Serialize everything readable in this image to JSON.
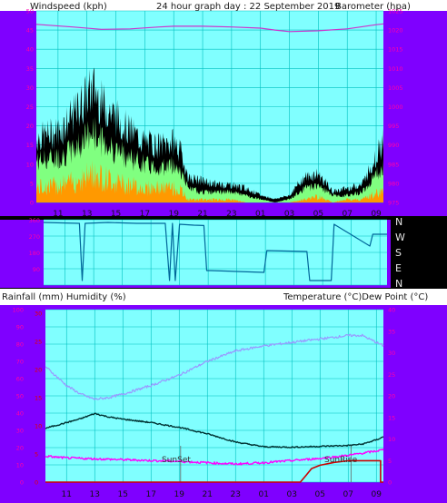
{
  "header": {
    "left_title": "Windspeed (kph)",
    "center_title": "24 hour graph day : 22 September 2019",
    "right_title": "Barometer (hpa)"
  },
  "direction_labels": [
    "N",
    "W",
    "S",
    "E",
    "N"
  ],
  "lower_header": {
    "left_title": "Rainfall (mm)  Humidity (%)",
    "right_title": "Temperature (°C)Dew Point (°C)"
  },
  "annotations": {
    "sunset": "SunSet",
    "sunrise": "SunRise"
  },
  "colors": {
    "plot_bg": "#80ffff",
    "frame": "#7f00ff",
    "grid": "#00c0c0",
    "barometer": "#cc33cc",
    "wind_gust": "#000000",
    "wind_avg": "#80ff80",
    "wind_low": "#ff9900",
    "direction": "#006699",
    "humidity": "#9999ff",
    "temperature": "#003333",
    "dewpoint": "#ff00ff",
    "rainfall": "#cc0000"
  },
  "chart_data": [
    {
      "type": "line",
      "panel": "wind_barometer",
      "x_tick_labels": [
        "11",
        "13",
        "15",
        "17",
        "19",
        "21",
        "23",
        "01",
        "03",
        "05",
        "07",
        "09"
      ],
      "x_range_hours": [
        9.5,
        33.5
      ],
      "left_axis": {
        "label": "Windspeed (kph)",
        "range": [
          0,
          50
        ],
        "ticks": [
          "0",
          "5",
          "10",
          "15",
          "20",
          "25",
          "30",
          "35",
          "40",
          "45",
          "50"
        ]
      },
      "right_axis": {
        "label": "Barometer (hpa)",
        "range": [
          975,
          1025
        ],
        "ticks": [
          "975",
          "980",
          "985",
          "990",
          "995",
          "1000",
          "1005",
          "1010",
          "1015",
          "1020",
          "1025"
        ]
      },
      "series": [
        {
          "name": "Barometer",
          "axis": "right",
          "hours": [
            9.5,
            12,
            14,
            16,
            18,
            19,
            21,
            23,
            25,
            26,
            27,
            29,
            31,
            33,
            33.5
          ],
          "values": [
            1021.5,
            1020.8,
            1020.2,
            1020.3,
            1020.8,
            1021.0,
            1021.0,
            1020.8,
            1020.5,
            1020.0,
            1019.6,
            1019.8,
            1020.3,
            1021.4,
            1021.6
          ]
        },
        {
          "name": "Wind gust",
          "axis": "left",
          "hours": [
            9.5,
            11,
            12,
            13,
            13.5,
            14,
            15,
            16,
            17,
            18,
            19,
            19.5,
            20,
            21,
            22,
            23,
            24,
            25,
            26,
            27,
            28,
            29,
            30,
            31,
            32,
            33,
            33.5
          ],
          "values": [
            18,
            20,
            24,
            30,
            32,
            28,
            24,
            20,
            17,
            16,
            17,
            14,
            7,
            6,
            5,
            5,
            4,
            2,
            1,
            2,
            7,
            8,
            3,
            4,
            5,
            13,
            17
          ]
        },
        {
          "name": "Wind average",
          "axis": "left",
          "hours": [
            9.5,
            11,
            12,
            13,
            13.5,
            14,
            15,
            16,
            17,
            18,
            19,
            19.5,
            20,
            21,
            22,
            23,
            24,
            25,
            26,
            27,
            28,
            29,
            30,
            31,
            32,
            33,
            33.5
          ],
          "values": [
            12,
            13,
            15,
            19,
            20,
            18,
            15,
            13,
            11,
            10,
            11,
            9,
            4,
            3,
            3,
            3,
            2,
            1,
            0,
            1,
            4,
            5,
            2,
            2,
            3,
            8,
            11
          ]
        },
        {
          "name": "Wind low",
          "axis": "left",
          "hours": [
            9.5,
            11,
            12,
            13,
            13.5,
            14,
            15,
            16,
            17,
            18,
            19,
            19.5,
            20,
            21,
            22,
            23,
            24,
            25,
            26,
            27,
            28,
            29,
            30,
            31,
            32,
            33,
            33.5
          ],
          "values": [
            5,
            6,
            7,
            9,
            10,
            9,
            7,
            6,
            5,
            5,
            5,
            4,
            1,
            1,
            1,
            1,
            0,
            0,
            0,
            0,
            1,
            2,
            0,
            1,
            1,
            3,
            4
          ]
        }
      ]
    },
    {
      "type": "line",
      "panel": "wind_direction",
      "y_axis": {
        "range": [
          0,
          360
        ],
        "ticks": [
          "90",
          "180",
          "270",
          "360"
        ]
      },
      "series": [
        {
          "name": "Wind direction",
          "hours": [
            9.5,
            12,
            12.2,
            12.4,
            14,
            16,
            18,
            18.3,
            18.5,
            18.7,
            19,
            20,
            20.7,
            20.9,
            21.2,
            24.9,
            25.1,
            27.9,
            28.1,
            29.6,
            29.8,
            32.3,
            32.5,
            33.5
          ],
          "values": [
            345,
            340,
            25,
            340,
            345,
            340,
            340,
            25,
            340,
            25,
            335,
            330,
            328,
            80,
            80,
            70,
            190,
            185,
            25,
            25,
            335,
            215,
            280,
            280
          ]
        }
      ]
    },
    {
      "type": "line",
      "panel": "temperature_humidity",
      "left_axis": {
        "label": "Rainfall (mm)  Humidity (%)",
        "range": [
          0,
          100
        ],
        "humidity_ticks": [
          "0",
          "10",
          "20",
          "30",
          "40",
          "50",
          "60",
          "70",
          "80",
          "90",
          "100"
        ],
        "rain_ticks": [
          "0",
          "5",
          "10",
          "15",
          "20",
          "25",
          "30"
        ]
      },
      "right_axis": {
        "label": "Temperature (°C)Dew Point (°C)",
        "range": [
          0,
          40
        ],
        "ticks": [
          "0",
          "5",
          "10",
          "15",
          "20",
          "25",
          "30",
          "35",
          "40"
        ]
      },
      "series": [
        {
          "name": "Humidity",
          "axis": "left",
          "hours": [
            9.5,
            11,
            12,
            13,
            14,
            15,
            17,
            19,
            21,
            23,
            25,
            27,
            29,
            31,
            32,
            33,
            33.5
          ],
          "values": [
            67,
            56,
            51,
            48,
            49,
            51,
            56,
            62,
            70,
            76,
            79,
            81,
            83,
            85,
            85,
            81,
            79
          ]
        },
        {
          "name": "Temperature",
          "axis": "right",
          "hours": [
            9.5,
            11,
            12,
            13,
            14,
            15,
            17,
            19,
            21,
            23,
            25,
            27,
            29,
            31,
            32,
            33,
            33.5
          ],
          "values": [
            12.5,
            13.8,
            14.7,
            15.9,
            15.1,
            14.6,
            13.8,
            12.7,
            11.2,
            9.3,
            8.2,
            8.1,
            8.3,
            8.5,
            8.8,
            9.8,
            10.5
          ]
        },
        {
          "name": "Dew point",
          "axis": "right",
          "hours": [
            9.5,
            11,
            13,
            15,
            17,
            19,
            21,
            23,
            25,
            27,
            29,
            31,
            32,
            33,
            33.5
          ],
          "values": [
            6.0,
            5.6,
            5.4,
            5.2,
            5.0,
            4.8,
            4.5,
            4.2,
            4.5,
            5.0,
            5.5,
            6.2,
            6.7,
            7.2,
            7.5
          ]
        },
        {
          "name": "Rainfall",
          "axis": "left",
          "hours": [
            9.5,
            27.6,
            28.0,
            28.4,
            29.0,
            30.0,
            31.0,
            33.3,
            33.3,
            33.5
          ],
          "values": [
            0,
            0,
            1.2,
            2.4,
            3.0,
            3.5,
            3.8,
            3.8,
            0,
            0
          ]
        }
      ]
    }
  ]
}
